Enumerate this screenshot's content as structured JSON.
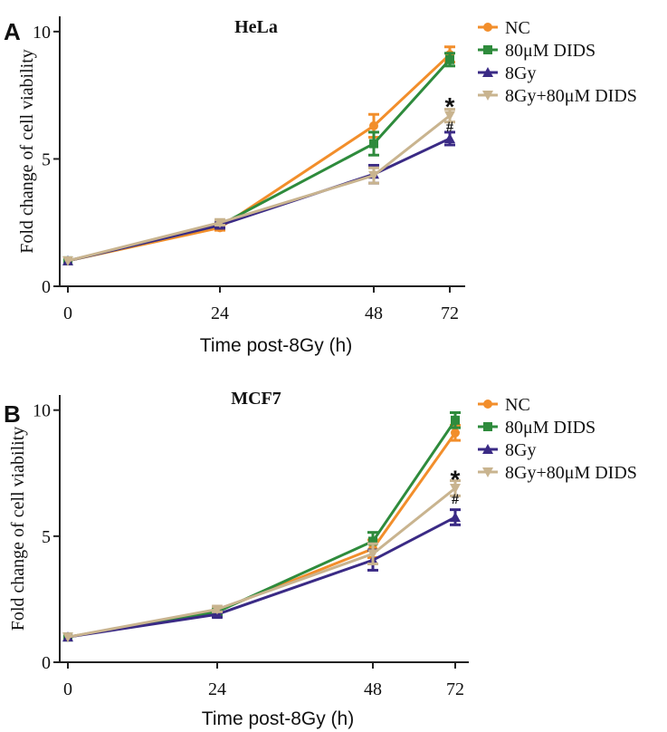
{
  "chart_data": [
    {
      "panel_label": "A",
      "type": "line",
      "title": "HeLa",
      "xlabel": "Time post-8Gy (h)",
      "ylabel": "Fold change of cell viability",
      "x": [
        0,
        24,
        48,
        72
      ],
      "x_ticks": [
        "0",
        "24",
        "48",
        "72"
      ],
      "y_ticks": [
        "0",
        "5",
        "10"
      ],
      "ylim": [
        0,
        10.6
      ],
      "legend_position": "top-right",
      "series": [
        {
          "name": "NC",
          "color": "#f28e2b",
          "marker": "circle",
          "values": [
            1.0,
            2.3,
            6.3,
            9.1
          ],
          "errors": [
            0.0,
            0.1,
            0.45,
            0.3
          ]
        },
        {
          "name": "80μM DIDS",
          "color": "#2e8b3c",
          "marker": "square",
          "values": [
            1.0,
            2.4,
            5.6,
            8.9
          ],
          "errors": [
            0.0,
            0.1,
            0.45,
            0.25
          ]
        },
        {
          "name": "8Gy",
          "color": "#3a2a85",
          "marker": "triangle",
          "values": [
            1.0,
            2.4,
            4.4,
            5.8
          ],
          "errors": [
            0.0,
            0.1,
            0.35,
            0.25
          ]
        },
        {
          "name": "8Gy+80μM DIDS",
          "color": "#c9b48f",
          "marker": "triangle-down",
          "values": [
            1.0,
            2.5,
            4.35,
            6.7
          ],
          "errors": [
            0.0,
            0.1,
            0.3,
            0.25
          ]
        }
      ],
      "annotations": [
        {
          "text": "*",
          "x": 72,
          "y": 7.3
        },
        {
          "text": "#",
          "x": 72,
          "y": 6.3
        }
      ]
    },
    {
      "panel_label": "B",
      "type": "line",
      "title": "MCF7",
      "xlabel": "Time post-8Gy (h)",
      "ylabel": "Fold change of cell viability",
      "x": [
        0,
        24,
        48,
        72
      ],
      "x_ticks": [
        "0",
        "24",
        "48",
        "72"
      ],
      "y_ticks": [
        "0",
        "5",
        "10"
      ],
      "ylim": [
        0,
        10.6
      ],
      "legend_position": "top-right",
      "series": [
        {
          "name": "NC",
          "color": "#f28e2b",
          "marker": "circle",
          "values": [
            1.0,
            2.05,
            4.5,
            9.1
          ],
          "errors": [
            0.0,
            0.1,
            0.35,
            0.3
          ]
        },
        {
          "name": "80μM DIDS",
          "color": "#2e8b3c",
          "marker": "square",
          "values": [
            1.0,
            2.0,
            4.8,
            9.6
          ],
          "errors": [
            0.0,
            0.1,
            0.35,
            0.3
          ]
        },
        {
          "name": "8Gy",
          "color": "#3a2a85",
          "marker": "triangle",
          "values": [
            1.0,
            1.9,
            4.05,
            5.75
          ],
          "errors": [
            0.0,
            0.1,
            0.4,
            0.3
          ]
        },
        {
          "name": "8Gy+80μM DIDS",
          "color": "#c9b48f",
          "marker": "triangle-down",
          "values": [
            1.0,
            2.1,
            4.3,
            6.9
          ],
          "errors": [
            0.0,
            0.1,
            0.4,
            0.3
          ]
        }
      ],
      "annotations": [
        {
          "text": "*",
          "x": 72,
          "y": 7.5
        },
        {
          "text": "#",
          "x": 72,
          "y": 6.5
        }
      ]
    }
  ]
}
